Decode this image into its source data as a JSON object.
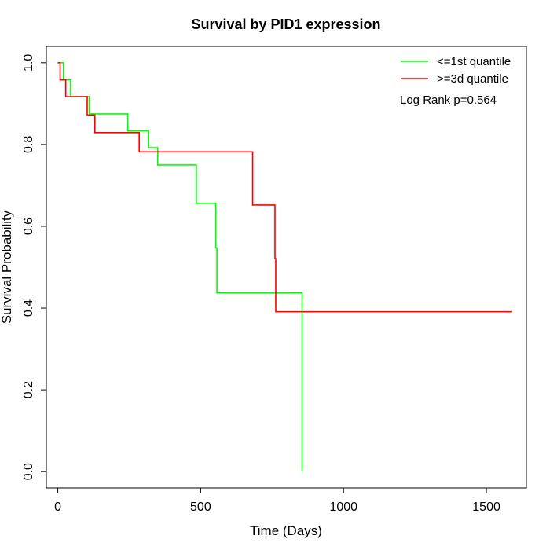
{
  "chart_data": {
    "type": "line",
    "title": "Survival by PID1 expression",
    "xlabel": "Time (Days)",
    "ylabel": "Survival Probability",
    "xlim": [
      -40,
      1640
    ],
    "ylim": [
      -0.04,
      1.04
    ],
    "xticks": [
      0,
      500,
      1000,
      1500
    ],
    "yticks": [
      0.0,
      0.2,
      0.4,
      0.6,
      0.8,
      1.0
    ],
    "xtick_labels": [
      "0",
      "500",
      "1000",
      "1500"
    ],
    "ytick_labels": [
      "0.0",
      "0.2",
      "0.4",
      "0.6",
      "0.8",
      "1.0"
    ],
    "grid": false,
    "legend_position": "top-right",
    "annotation": "Log Rank p=0.564",
    "series": [
      {
        "name": "<=1st quantile",
        "color": "#00ff00",
        "step_points": [
          [
            0,
            1.0
          ],
          [
            20,
            1.0
          ],
          [
            20,
            0.958
          ],
          [
            45,
            0.958
          ],
          [
            45,
            0.917
          ],
          [
            110,
            0.917
          ],
          [
            110,
            0.875
          ],
          [
            245,
            0.875
          ],
          [
            245,
            0.833
          ],
          [
            318,
            0.833
          ],
          [
            318,
            0.792
          ],
          [
            350,
            0.792
          ],
          [
            350,
            0.75
          ],
          [
            485,
            0.75
          ],
          [
            485,
            0.656
          ],
          [
            553,
            0.656
          ],
          [
            553,
            0.547
          ],
          [
            557,
            0.547
          ],
          [
            557,
            0.437
          ],
          [
            855,
            0.437
          ],
          [
            855,
            0.0
          ]
        ]
      },
      {
        "name": ">=3d quantile",
        "color": "#ff0000",
        "step_points": [
          [
            0,
            1.0
          ],
          [
            8,
            1.0
          ],
          [
            8,
            0.958
          ],
          [
            28,
            0.958
          ],
          [
            28,
            0.917
          ],
          [
            103,
            0.917
          ],
          [
            103,
            0.872
          ],
          [
            130,
            0.872
          ],
          [
            130,
            0.829
          ],
          [
            285,
            0.829
          ],
          [
            285,
            0.782
          ],
          [
            682,
            0.782
          ],
          [
            682,
            0.652
          ],
          [
            760,
            0.652
          ],
          [
            760,
            0.521
          ],
          [
            763,
            0.521
          ],
          [
            763,
            0.391
          ],
          [
            1590,
            0.391
          ]
        ]
      }
    ]
  }
}
